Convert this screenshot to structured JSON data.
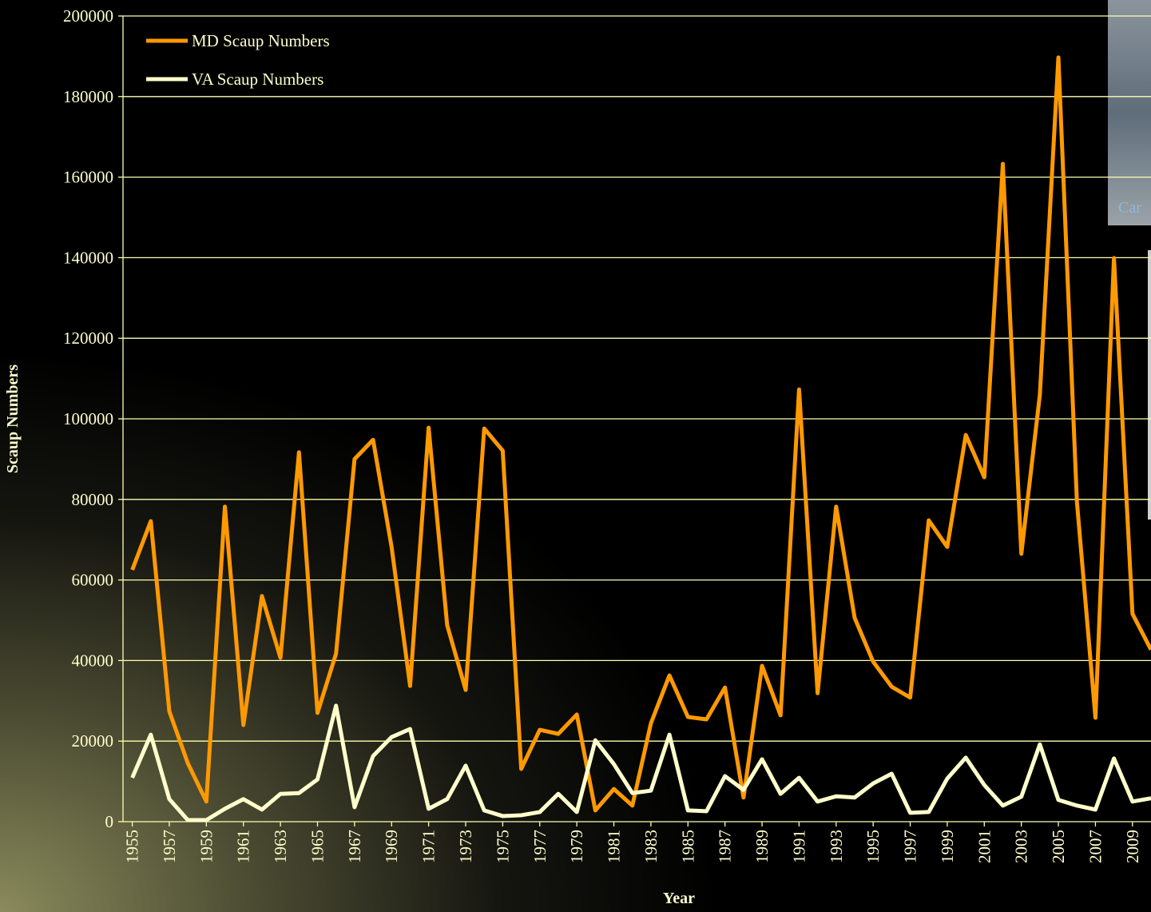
{
  "chart_data": {
    "type": "line",
    "x_label": "Year",
    "y_label": "Scaup Numbers",
    "x": [
      1955,
      1956,
      1957,
      1958,
      1959,
      1960,
      1961,
      1962,
      1963,
      1964,
      1965,
      1966,
      1967,
      1968,
      1969,
      1970,
      1971,
      1972,
      1973,
      1974,
      1975,
      1976,
      1977,
      1978,
      1979,
      1980,
      1981,
      1982,
      1983,
      1984,
      1985,
      1986,
      1987,
      1988,
      1989,
      1990,
      1991,
      1992,
      1993,
      1994,
      1995,
      1996,
      1997,
      1998,
      1999,
      2000,
      2001,
      2002,
      2003,
      2004,
      2005,
      2006,
      2007,
      2008,
      2009,
      2010
    ],
    "series": [
      {
        "name": "MD Scaup Numbers",
        "color": "#ff9900",
        "values": [
          62500,
          74600,
          27400,
          14500,
          5000,
          78200,
          24000,
          56000,
          40700,
          91700,
          27000,
          41700,
          90000,
          94800,
          68200,
          33700,
          97800,
          48800,
          32700,
          97600,
          92100,
          13100,
          22800,
          21800,
          26600,
          2800,
          8100,
          4000,
          24400,
          36300,
          26000,
          25400,
          33300,
          6000,
          38700,
          26400,
          107300,
          31900,
          78200,
          50600,
          39700,
          33500,
          30800,
          74800,
          68200,
          96000,
          85500,
          163300,
          66500,
          106000,
          189700,
          79400,
          25800,
          139900,
          51600,
          42700
        ]
      },
      {
        "name": "VA Scaup Numbers",
        "color": "#ffffcc",
        "values": [
          10900,
          21600,
          5600,
          400,
          400,
          3200,
          5600,
          3000,
          6900,
          7100,
          10500,
          28800,
          3600,
          16300,
          21000,
          23000,
          3200,
          5600,
          13900,
          2800,
          1400,
          1600,
          2400,
          6900,
          2400,
          20200,
          14300,
          7100,
          7700,
          21600,
          2800,
          2600,
          11300,
          7900,
          15500,
          6900,
          10900,
          5000,
          6300,
          6000,
          9500,
          11900,
          2200,
          2400,
          10700,
          15900,
          9100,
          4000,
          6200,
          19200,
          5400,
          4000,
          3000,
          15700,
          5000,
          5800
        ]
      }
    ],
    "xlim": [
      1954.5,
      2010
    ],
    "xticks": [
      1955,
      1957,
      1959,
      1961,
      1963,
      1965,
      1967,
      1969,
      1971,
      1973,
      1975,
      1977,
      1979,
      1981,
      1983,
      1985,
      1987,
      1989,
      1991,
      1993,
      1995,
      1997,
      1999,
      2001,
      2003,
      2005,
      2007,
      2009
    ],
    "ylim": [
      0,
      200000
    ],
    "yticks": [
      0,
      20000,
      40000,
      60000,
      80000,
      100000,
      120000,
      140000,
      160000,
      180000,
      200000
    ],
    "grid": true,
    "legend": "upper left"
  },
  "overlay": {
    "caption": "Car"
  }
}
